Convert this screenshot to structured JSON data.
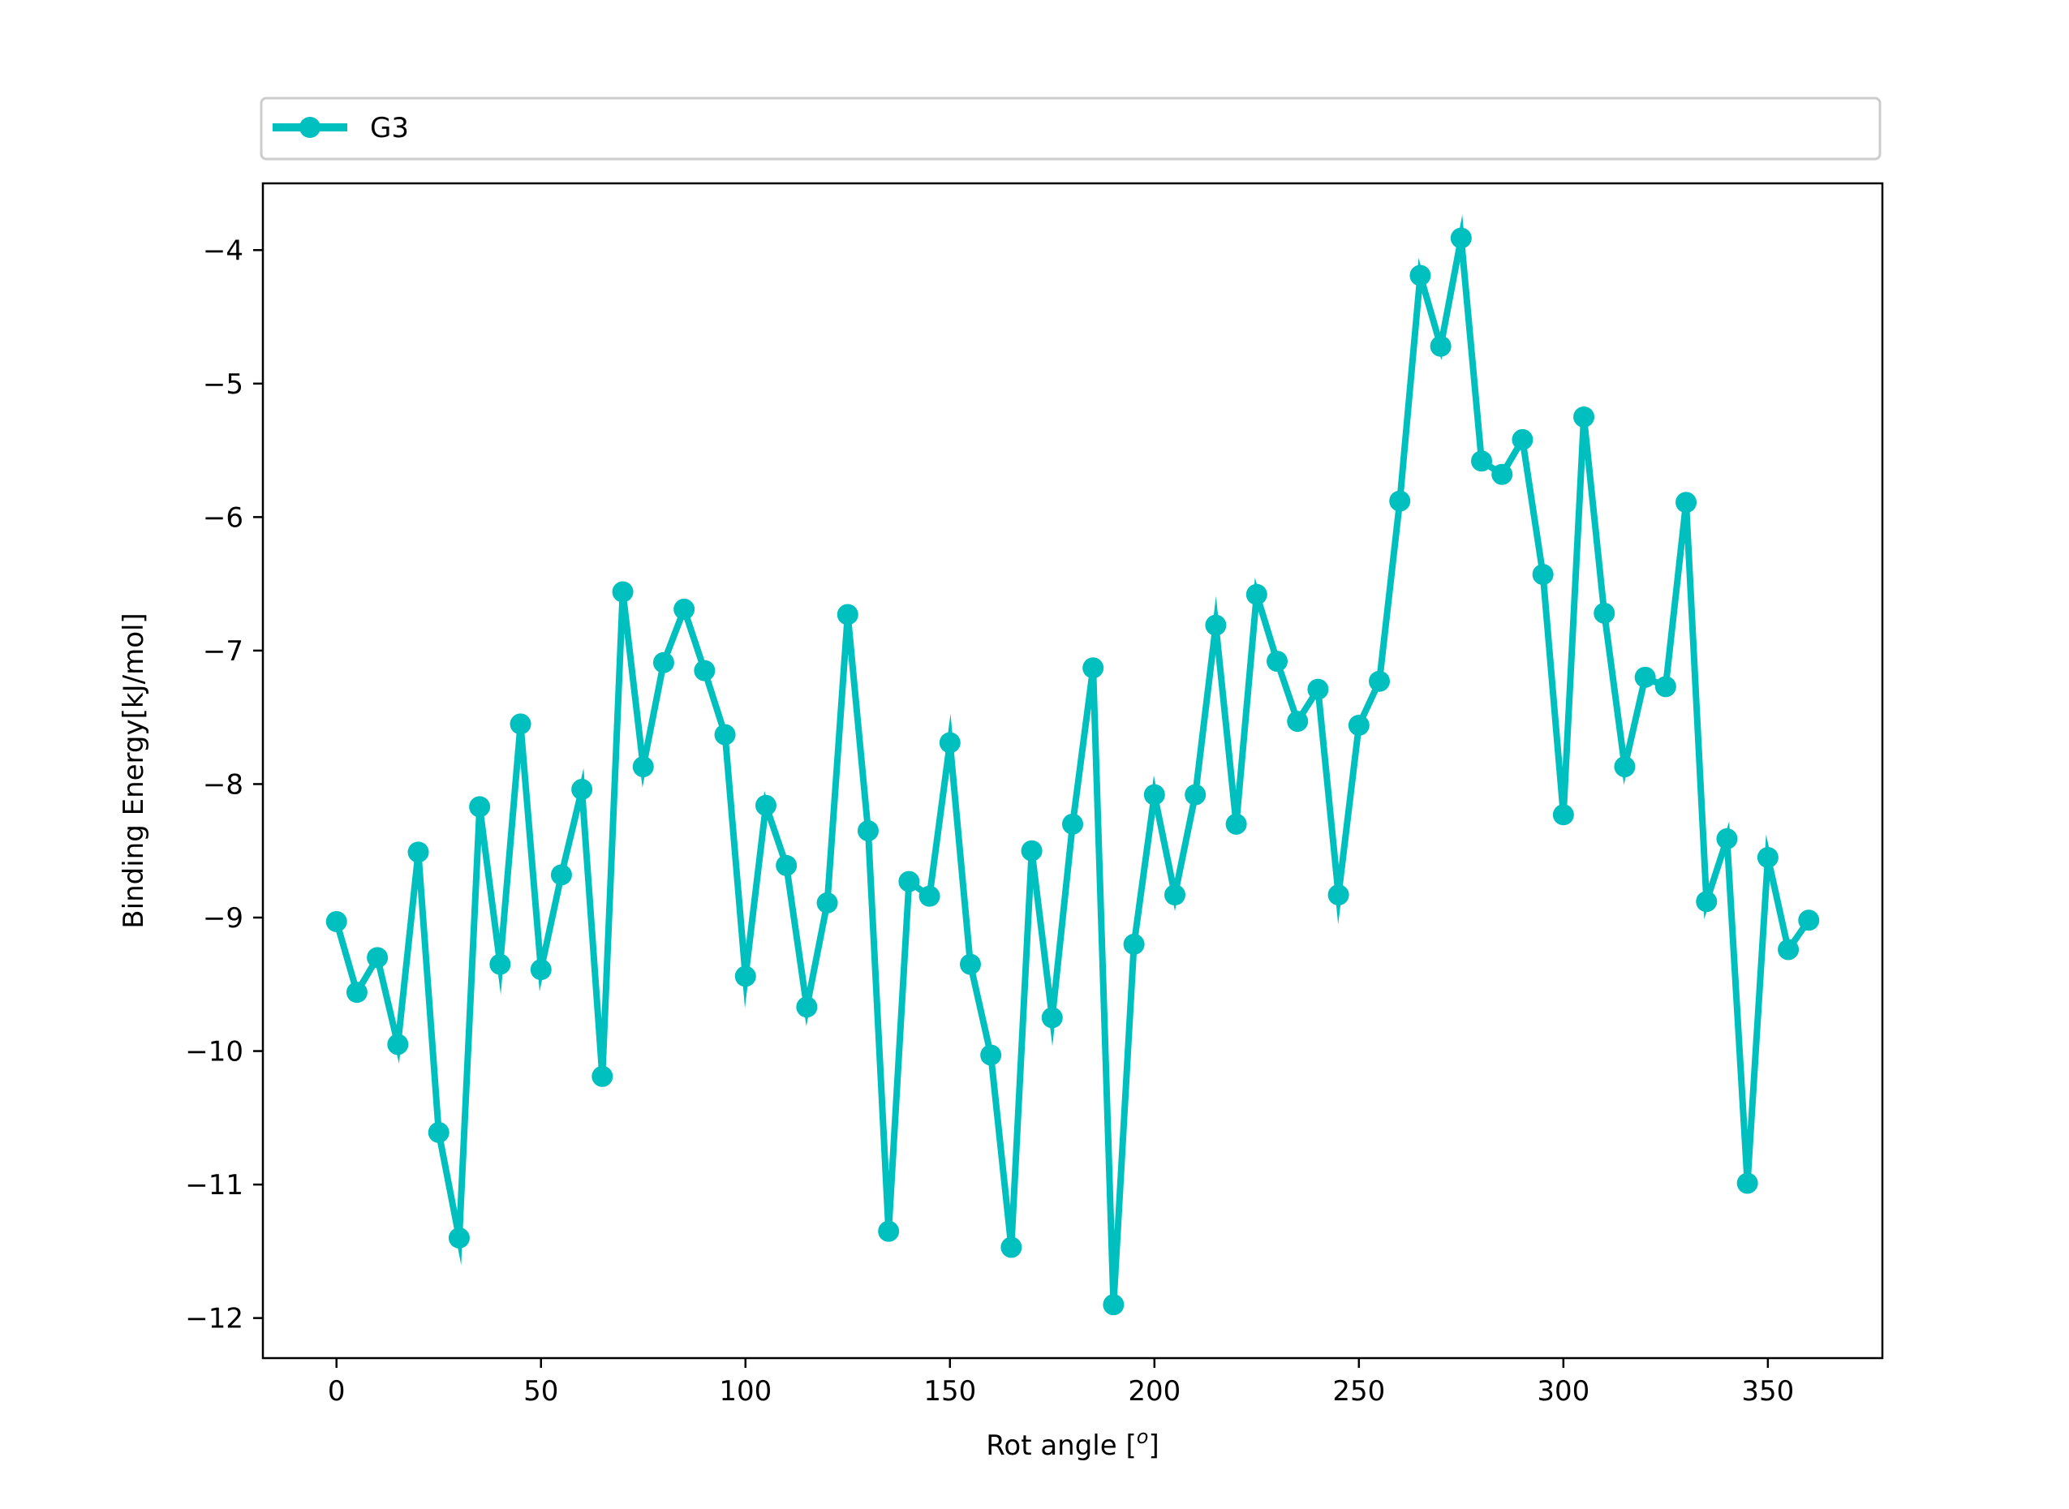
{
  "chart_data": {
    "type": "line",
    "title": "",
    "xlabel": "Rot angle [",
    "xlabel_sup": "o",
    "xlabel_suffix": "]",
    "ylabel": "Binding Energy[kJ/mol]",
    "xlim": [
      -18,
      378
    ],
    "ylim": [
      -12.3,
      -3.5
    ],
    "xticks": [
      0,
      50,
      100,
      150,
      200,
      250,
      300,
      350
    ],
    "xtick_labels": [
      "0",
      "50",
      "100",
      "150",
      "200",
      "250",
      "300",
      "350"
    ],
    "yticks": [
      -12,
      -11,
      -10,
      -9,
      -8,
      -7,
      -6,
      -5,
      -4
    ],
    "ytick_labels": [
      "−12",
      "−11",
      "−10",
      "−9",
      "−8",
      "−7",
      "−6",
      "−5",
      "−4"
    ],
    "grid": false,
    "legend_position": "above plot, spanning full width",
    "series": [
      {
        "name": "G3",
        "color": "#00BFBF",
        "marker": "circle",
        "x": [
          0,
          5,
          10,
          15,
          20,
          25,
          30,
          35,
          40,
          45,
          50,
          55,
          60,
          65,
          70,
          75,
          80,
          85,
          90,
          95,
          100,
          105,
          110,
          115,
          120,
          125,
          130,
          135,
          140,
          145,
          150,
          155,
          160,
          165,
          170,
          175,
          180,
          185,
          190,
          195,
          200,
          205,
          210,
          215,
          220,
          225,
          230,
          235,
          240,
          245,
          250,
          255,
          260,
          265,
          270,
          275,
          280,
          285,
          290,
          295,
          300,
          305,
          310,
          315,
          320,
          325,
          330,
          335,
          340,
          345,
          350,
          355,
          360
        ],
        "y": [
          -9.03,
          -9.56,
          -9.3,
          -9.95,
          -8.51,
          -10.61,
          -11.4,
          -8.17,
          -9.35,
          -7.55,
          -9.39,
          -8.68,
          -8.04,
          -10.19,
          -6.56,
          -7.87,
          -7.09,
          -6.69,
          -7.15,
          -7.63,
          -9.44,
          -8.16,
          -8.61,
          -9.67,
          -8.89,
          -6.73,
          -8.35,
          -11.35,
          -8.73,
          -8.84,
          -7.69,
          -9.35,
          -10.03,
          -11.47,
          -8.5,
          -9.75,
          -8.3,
          -7.13,
          -11.9,
          -9.2,
          -8.08,
          -8.83,
          -8.08,
          -6.81,
          -8.3,
          -6.58,
          -7.08,
          -7.53,
          -7.29,
          -8.83,
          -7.56,
          -7.23,
          -5.88,
          -4.19,
          -4.72,
          -3.91,
          -5.58,
          -5.68,
          -5.42,
          -6.43,
          -8.23,
          -5.25,
          -6.72,
          -7.87,
          -7.2,
          -7.27,
          -5.89,
          -8.88,
          -8.41,
          -10.99,
          -8.55,
          -9.24,
          -9.02
        ]
      }
    ]
  }
}
